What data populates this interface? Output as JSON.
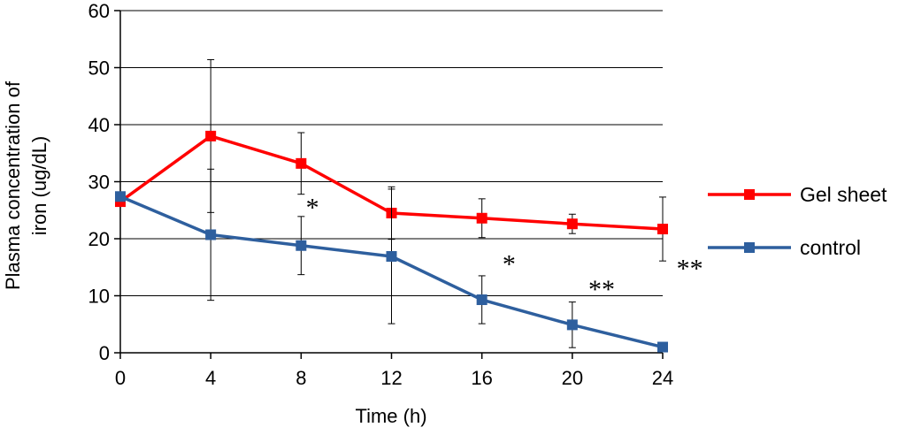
{
  "chart_data": {
    "type": "line",
    "xlabel": "Time (h)",
    "ylabel_lines": [
      "Plasma concentration of",
      "iron (ug/dL)"
    ],
    "x": [
      0,
      4,
      8,
      12,
      16,
      20,
      24
    ],
    "xticks": [
      "0",
      "4",
      "8",
      "12",
      "16",
      "20",
      "24"
    ],
    "yticks": [
      "0",
      "10",
      "20",
      "30",
      "40",
      "50",
      "60"
    ],
    "xlim": [
      0,
      24
    ],
    "ylim": [
      0,
      60
    ],
    "grid": "horizontal",
    "legend_position": "right",
    "series": [
      {
        "name": "Gel sheet",
        "color": "#ff0000",
        "values": [
          26.5,
          38.0,
          33.2,
          24.5,
          23.6,
          22.6,
          21.7
        ],
        "errors": [
          0.8,
          13.4,
          5.4,
          4.6,
          3.4,
          1.7,
          5.6
        ]
      },
      {
        "name": "control",
        "color": "#2e5f9e",
        "values": [
          27.4,
          20.7,
          18.8,
          16.9,
          9.3,
          4.9,
          1.0
        ],
        "errors": [
          0.5,
          11.5,
          5.1,
          11.8,
          4.2,
          4.0,
          0.3
        ]
      }
    ],
    "annotations": [
      {
        "text": "*",
        "x": 8.5,
        "y": 25.5
      },
      {
        "text": "*",
        "x": 17.2,
        "y": 15.6
      },
      {
        "text": "**",
        "x": 21.3,
        "y": 11.2
      },
      {
        "text": "**",
        "x": 25.2,
        "y": 14.8
      }
    ]
  }
}
